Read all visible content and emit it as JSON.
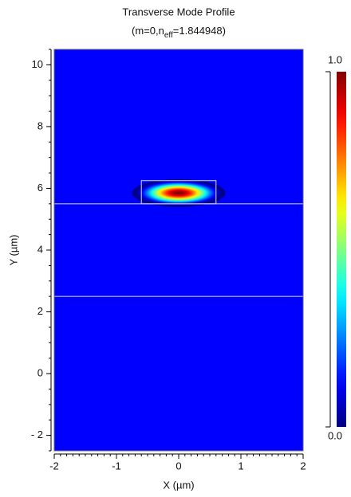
{
  "chart_data": {
    "type": "heatmap",
    "title": "Transverse Mode Profile",
    "subtitle_parts": [
      "(m=0,n",
      "eff",
      "=1.844948)"
    ],
    "xlabel": "X (µm)",
    "ylabel": "Y (µm)",
    "xlim": [
      -2,
      2
    ],
    "ylim": [
      -2.5,
      10.5
    ],
    "xticks": [
      -2,
      -1,
      0,
      1,
      2
    ],
    "yticks": [
      {
        "value": -2,
        "label": "- 2"
      },
      0,
      2,
      4,
      6,
      8,
      10
    ],
    "xminor": 0.1,
    "yminor": 0.5,
    "background": "#0000ff",
    "colormap": "jet",
    "zlim": [
      0,
      1
    ],
    "zticks": [
      {
        "value": 0,
        "label": "0.0"
      },
      {
        "value": 1,
        "label": "1.0"
      }
    ],
    "mode": {
      "x": 0,
      "y": 5.85,
      "peak": 1.0,
      "x_halfwidth": 0.75,
      "y_halfwidth": 0.45
    },
    "interfaces": [
      5.5,
      2.5
    ],
    "core": {
      "x": [
        -0.6,
        0.6
      ],
      "y": [
        5.5,
        6.25
      ]
    }
  }
}
